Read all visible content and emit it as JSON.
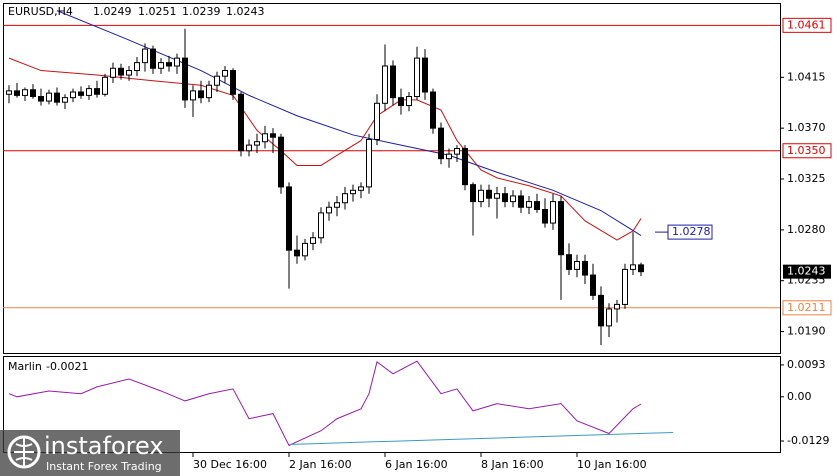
{
  "chart_data": [
    {
      "type": "candlestick",
      "symbol": "EURUSD,H4",
      "header_ohlc": [
        1.0249,
        1.0251,
        1.0239,
        1.0243
      ],
      "ylim": [
        1.0171,
        1.0479
      ],
      "yticks": [
        {
          "value": 1.019,
          "label": "1.0190"
        },
        1.0235,
        {
          "value": 1.028,
          "label": "1.0280"
        },
        1.0325,
        {
          "value": 1.037,
          "label": "1.0370"
        },
        1.0415
      ],
      "xticks": [
        {
          "value": 23,
          "label": "30 Dec 16:00"
        },
        {
          "value": 35,
          "label": "2 Jan 16:00"
        },
        {
          "value": 47,
          "label": "6 Jan 16:00"
        },
        {
          "value": 59,
          "label": "8 Jan 16:00"
        },
        {
          "value": 71,
          "label": "10 Jan 16:00"
        }
      ],
      "open": [
        1.04,
        1.0403,
        1.0399,
        1.0404,
        1.0398,
        1.0394,
        1.0401,
        1.0393,
        1.0397,
        1.0402,
        1.0399,
        1.0405,
        1.04,
        1.0415,
        1.0423,
        1.0417,
        1.0421,
        1.0428,
        1.044,
        1.0423,
        1.0428,
        1.0425,
        1.0432,
        1.0395,
        1.0403,
        1.0397,
        1.0408,
        1.0416,
        1.0421,
        1.04,
        1.035,
        1.0355,
        1.0358,
        1.0365,
        1.0362,
        1.0318,
        1.0262,
        1.0257,
        1.0268,
        1.0273,
        1.0295,
        1.03,
        1.0304,
        1.0312,
        1.0315,
        1.0318,
        1.036,
        1.0392,
        1.0425,
        1.0397,
        1.039,
        1.0398,
        1.0432,
        1.0402,
        1.037,
        1.0343,
        1.0347,
        1.0352,
        1.032,
        1.0305,
        1.0315,
        1.0308,
        1.0312,
        1.0305,
        1.031,
        1.03,
        1.0305,
        1.0298,
        1.0286,
        1.0305,
        1.0258,
        1.0245,
        1.0252,
        1.024,
        1.0222,
        1.0195,
        1.021,
        1.0214,
        1.0245,
        1.0249
      ],
      "high": [
        1.0408,
        1.041,
        1.0406,
        1.0409,
        1.0405,
        1.0404,
        1.0406,
        1.04,
        1.0405,
        1.0407,
        1.0408,
        1.0412,
        1.0418,
        1.0428,
        1.0427,
        1.0425,
        1.0433,
        1.0445,
        1.0443,
        1.0432,
        1.0434,
        1.0436,
        1.0458,
        1.0408,
        1.0412,
        1.0412,
        1.042,
        1.0425,
        1.0423,
        1.0402,
        1.036,
        1.0365,
        1.0372,
        1.037,
        1.0365,
        1.0322,
        1.0275,
        1.0272,
        1.0278,
        1.03,
        1.0305,
        1.031,
        1.0318,
        1.032,
        1.0322,
        1.0365,
        1.04,
        1.0444,
        1.043,
        1.0405,
        1.0402,
        1.0442,
        1.044,
        1.0405,
        1.0375,
        1.0352,
        1.0355,
        1.0355,
        1.0322,
        1.032,
        1.032,
        1.0318,
        1.0318,
        1.0315,
        1.0315,
        1.031,
        1.0312,
        1.0308,
        1.0312,
        1.031,
        1.0268,
        1.0258,
        1.0258,
        1.025,
        1.023,
        1.0215,
        1.0218,
        1.025,
        1.0278,
        1.0251
      ],
      "low": [
        1.0392,
        1.0397,
        1.0394,
        1.0396,
        1.039,
        1.0391,
        1.039,
        1.0387,
        1.0393,
        1.0396,
        1.0395,
        1.0397,
        1.0398,
        1.041,
        1.0413,
        1.0412,
        1.0416,
        1.042,
        1.0418,
        1.0418,
        1.042,
        1.0418,
        1.0388,
        1.038,
        1.0392,
        1.0393,
        1.0402,
        1.041,
        1.0395,
        1.0345,
        1.0345,
        1.0348,
        1.0352,
        1.0348,
        1.0312,
        1.0228,
        1.025,
        1.0253,
        1.0262,
        1.0268,
        1.0288,
        1.0292,
        1.0298,
        1.0305,
        1.0308,
        1.0312,
        1.0355,
        1.0385,
        1.039,
        1.0382,
        1.0385,
        1.0395,
        1.0395,
        1.0365,
        1.0338,
        1.0335,
        1.034,
        1.0315,
        1.0275,
        1.03,
        1.03,
        1.029,
        1.03,
        1.03,
        1.0295,
        1.0294,
        1.0295,
        1.0282,
        1.028,
        1.0218,
        1.024,
        1.0238,
        1.0232,
        1.0218,
        1.0178,
        1.0185,
        1.0198,
        1.021,
        1.024,
        1.0239
      ],
      "close": [
        1.0403,
        1.0399,
        1.0404,
        1.0398,
        1.0394,
        1.0401,
        1.0393,
        1.0397,
        1.0402,
        1.0399,
        1.0405,
        1.04,
        1.0415,
        1.0423,
        1.0417,
        1.0421,
        1.0428,
        1.044,
        1.0423,
        1.0428,
        1.0425,
        1.0432,
        1.0395,
        1.0403,
        1.0397,
        1.0408,
        1.0416,
        1.0421,
        1.04,
        1.035,
        1.0355,
        1.0358,
        1.0365,
        1.0362,
        1.0318,
        1.0262,
        1.0257,
        1.0268,
        1.0273,
        1.0295,
        1.03,
        1.0304,
        1.0312,
        1.0315,
        1.0318,
        1.036,
        1.0392,
        1.0425,
        1.0397,
        1.039,
        1.0398,
        1.0432,
        1.0402,
        1.037,
        1.0343,
        1.0347,
        1.0352,
        1.032,
        1.0305,
        1.0315,
        1.0308,
        1.0312,
        1.0305,
        1.031,
        1.03,
        1.0305,
        1.0298,
        1.0286,
        1.0305,
        1.0258,
        1.0245,
        1.0252,
        1.024,
        1.0222,
        1.0195,
        1.021,
        1.0214,
        1.0245,
        1.0249,
        1.0243
      ],
      "lines": [
        {
          "color": "#d01010",
          "x": [
            0,
            4,
            11,
            18,
            24,
            28,
            31,
            34,
            36,
            39,
            41,
            44,
            46,
            49,
            51,
            54,
            56,
            59,
            61,
            65,
            69,
            72,
            76,
            78,
            79
          ],
          "values": [
            1.0432,
            1.0421,
            1.0417,
            1.0412,
            1.0408,
            1.0399,
            1.0368,
            1.035,
            1.0337,
            1.0337,
            1.0346,
            1.0359,
            1.0381,
            1.0395,
            1.0395,
            1.0386,
            1.0359,
            1.0333,
            1.0326,
            1.0319,
            1.031,
            1.0288,
            1.0271,
            1.0279,
            1.029
          ]
        },
        {
          "color": "#1c1ca8",
          "x": [
            6,
            15,
            24,
            30,
            36,
            43,
            49,
            55,
            61,
            68,
            74,
            79
          ],
          "values": [
            1.0474,
            1.0448,
            1.0421,
            1.0399,
            1.0381,
            1.0364,
            1.0355,
            1.0346,
            1.0331,
            1.0315,
            1.0297,
            1.0275
          ]
        }
      ],
      "ma_tag": 1.0278,
      "levels": [
        1.0461,
        {
          "value": 1.035,
          "label": "1.0350"
        },
        1.0211
      ],
      "level_colors": [
        "#e00000",
        "#e00000",
        "#f08040"
      ],
      "last_price": 1.0243,
      "watermark": {
        "brand": "instaforex",
        "tagline": "Instant Forex Trading"
      }
    },
    {
      "type": "line",
      "name": "Marlin",
      "last": -0.0021,
      "ylim": [
        -0.0161,
        0.0119
      ],
      "yticks": [
        -0.0129,
        {
          "value": 0,
          "label": "0.00"
        },
        0.0093
      ],
      "series": [
        {
          "color": "#9a1ab0",
          "x": [
            0,
            1,
            5,
            9,
            11,
            15,
            19,
            22,
            25,
            28,
            30,
            33,
            35,
            39,
            41,
            44,
            45,
            46,
            48,
            51,
            54,
            56,
            58,
            61,
            65,
            69,
            71,
            75,
            78,
            79
          ],
          "values": [
            0.0009,
            0,
            0.0017,
            0.0009,
            0.0029,
            0.0052,
            0.0017,
            -0.0012,
            0.0009,
            0.0023,
            -0.0064,
            -0.0049,
            -0.0142,
            -0.0099,
            -0.0064,
            -0.0035,
            0.0009,
            0.0102,
            0.0067,
            0.0104,
            0.0009,
            0.0023,
            -0.0041,
            -0.002,
            -0.0035,
            -0.002,
            -0.007,
            -0.0107,
            -0.0035,
            -0.0021
          ]
        },
        {
          "color": "#3a9cc0",
          "x": [
            35,
            83
          ],
          "values": [
            -0.0139,
            -0.0104
          ]
        }
      ]
    }
  ]
}
